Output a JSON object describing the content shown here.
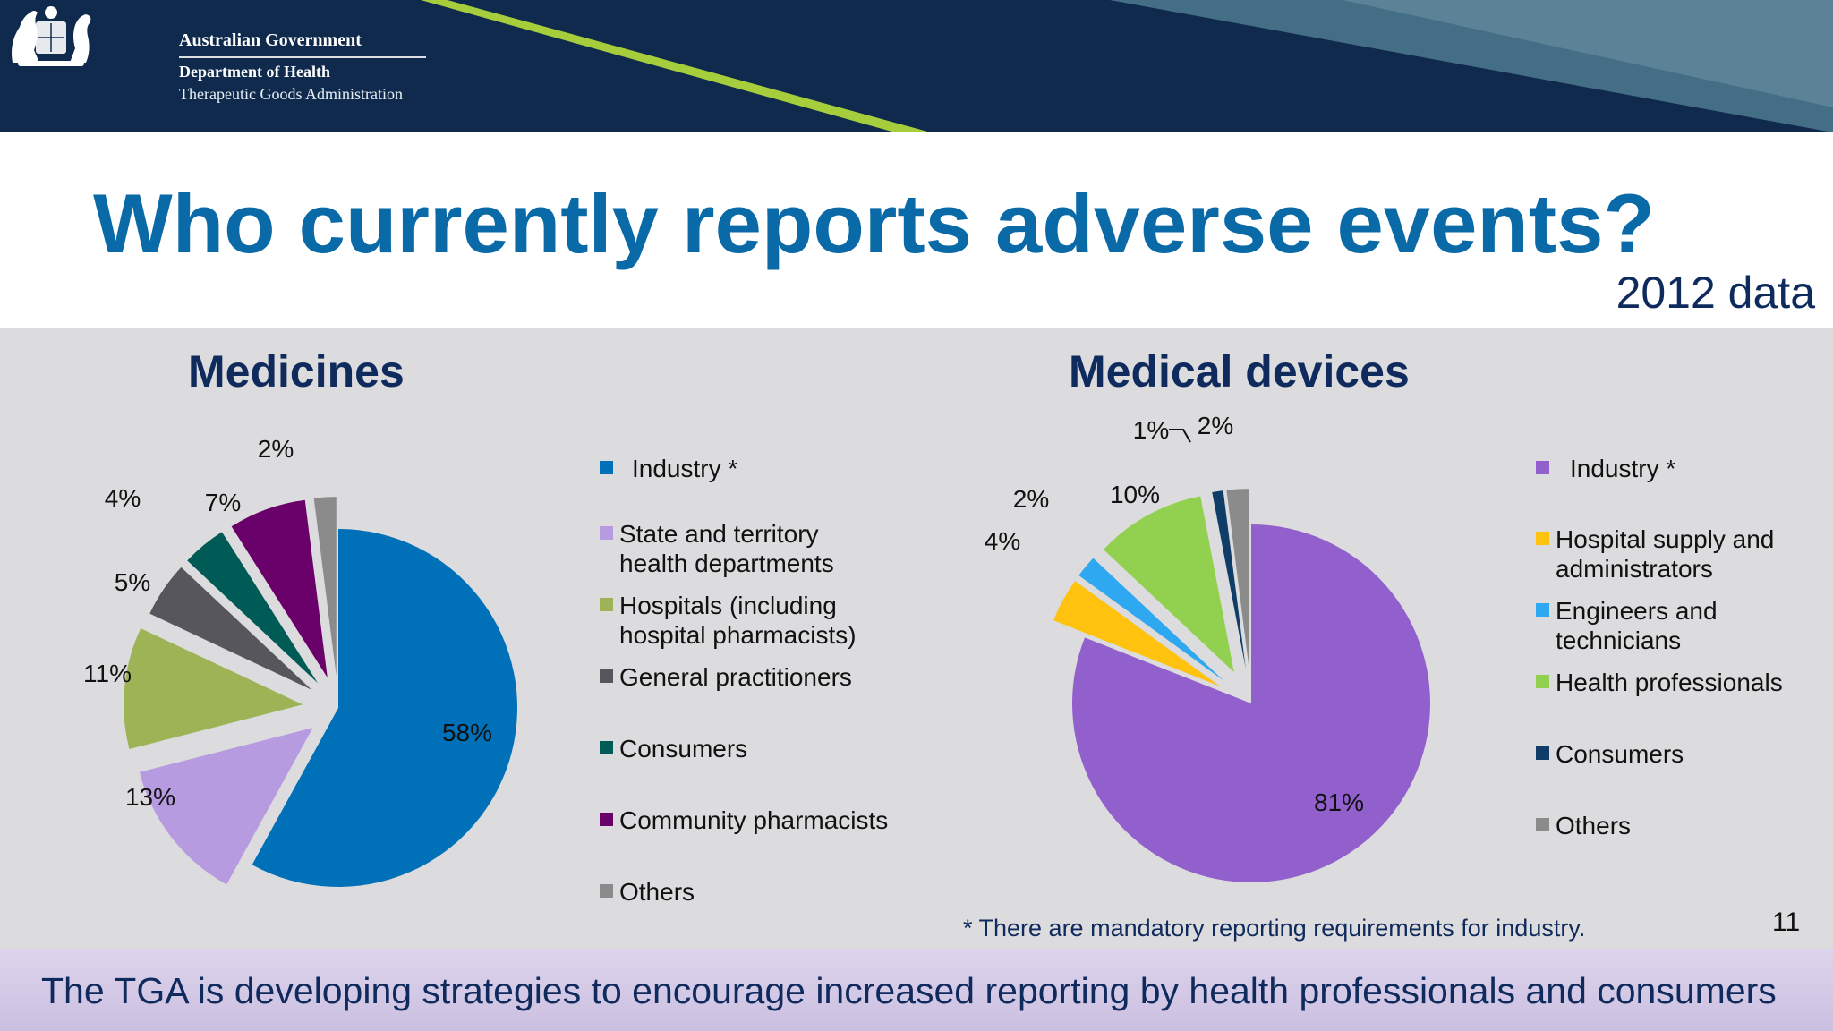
{
  "header": {
    "gov": "Australian Government",
    "dept": "Department of Health",
    "agency": "Therapeutic Goods Administration",
    "banner_color": "#0f2a4c",
    "accent_stripe": "#a6cd3b"
  },
  "slide": {
    "title": "Who currently reports adverse events?",
    "subtitle": "2012 data",
    "footnote": "* There are mandatory reporting requirements for industry.",
    "page_number": "11",
    "bottom_text": "The TGA is developing strategies to encourage increased reporting by health professionals and consumers"
  },
  "chart_data": [
    {
      "type": "pie",
      "title": "Medicines",
      "legend_position": "right",
      "slices": [
        {
          "label": "Industry *",
          "value": 58,
          "text": "58%",
          "color": "#0070b8"
        },
        {
          "label": "State and territory health departments",
          "value": 13,
          "text": "13%",
          "color": "#b79be0"
        },
        {
          "label": "Hospitals (including hospital pharmacists)",
          "value": 11,
          "text": "11%",
          "color": "#9db356"
        },
        {
          "label": "General practitioners",
          "value": 5,
          "text": "5%",
          "color": "#57565c"
        },
        {
          "label": "Consumers",
          "value": 4,
          "text": "4%",
          "color": "#005a55"
        },
        {
          "label": "Community pharmacists",
          "value": 7,
          "text": "7%",
          "color": "#6a0069"
        },
        {
          "label": "Others",
          "value": 2,
          "text": "2%",
          "color": "#8b8b8b"
        }
      ],
      "legend": [
        {
          "label": "Industry *",
          "color": "#0070b8"
        },
        {
          "label": "State and territory",
          "label2": "health departments",
          "color": "#b79be0"
        },
        {
          "label": "Hospitals (including",
          "label2": "hospital pharmacists)",
          "color": "#9db356"
        },
        {
          "label": "General practitioners",
          "color": "#57565c"
        },
        {
          "label": "Consumers",
          "color": "#005a55"
        },
        {
          "label": "Community pharmacists",
          "color": "#6a0069"
        },
        {
          "label": "Others",
          "color": "#8b8b8b"
        }
      ]
    },
    {
      "type": "pie",
      "title": "Medical devices",
      "legend_position": "right",
      "slices": [
        {
          "label": "Industry *",
          "value": 81,
          "text": "81%",
          "color": "#9260cc"
        },
        {
          "label": "Hospital supply and administrators",
          "value": 4,
          "text": "4%",
          "color": "#ffc20e"
        },
        {
          "label": "Engineers and technicians",
          "value": 2,
          "text": "2%",
          "color": "#2ea8f0"
        },
        {
          "label": "Health professionals",
          "value": 10,
          "text": "10%",
          "color": "#92d050"
        },
        {
          "label": "Consumers",
          "value": 1,
          "text": "1%",
          "color": "#0f3d68"
        },
        {
          "label": "Others",
          "value": 2,
          "text": "2%",
          "color": "#8b8b8b"
        }
      ],
      "legend": [
        {
          "label": "Industry *",
          "color": "#9260cc"
        },
        {
          "label": "Hospital supply and",
          "label2": "administrators",
          "color": "#ffc20e"
        },
        {
          "label": "Engineers and",
          "label2": "technicians",
          "color": "#2ea8f0"
        },
        {
          "label": "Health professionals",
          "color": "#92d050"
        },
        {
          "label": "Consumers",
          "color": "#0f3d68"
        },
        {
          "label": "Others",
          "color": "#8b8b8b"
        }
      ]
    }
  ]
}
